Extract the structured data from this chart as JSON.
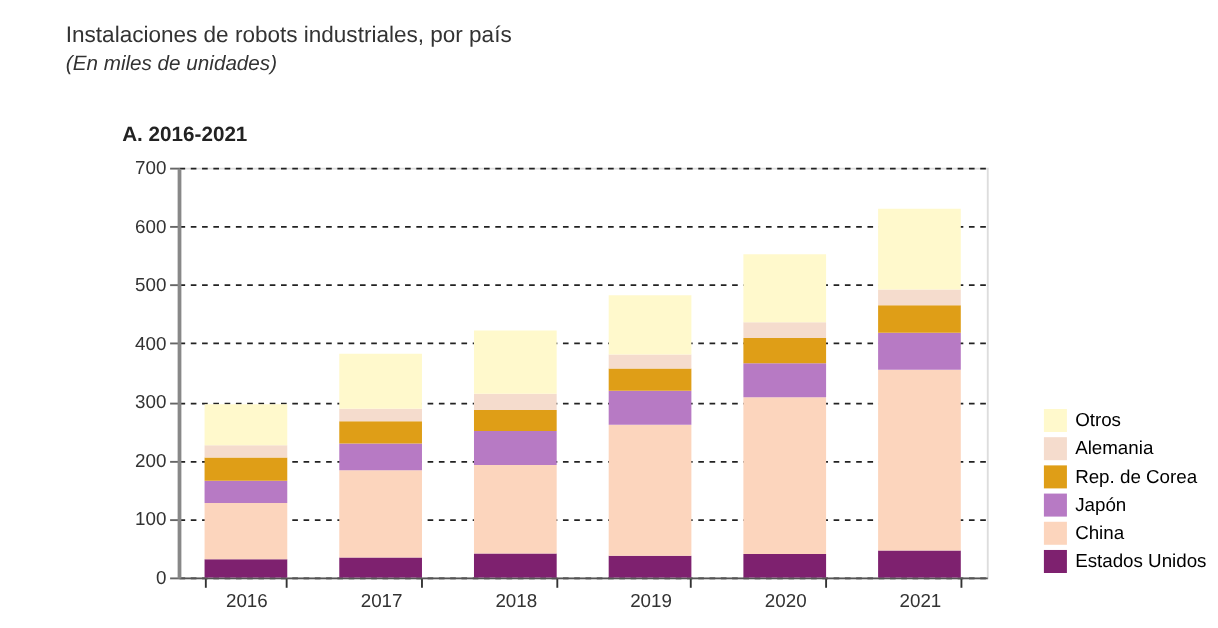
{
  "chart_data": {
    "type": "bar",
    "title": "Instalaciones de robots industriales, por país",
    "subtitle": "(En miles de unidades)",
    "annotations": [
      "A. 2016-2021"
    ],
    "categories": [
      "2016",
      "2017",
      "2018",
      "2019",
      "2020",
      "2021"
    ],
    "stacked": true,
    "series": [
      {
        "name": "Estados Unidos",
        "color": "#7e216f",
        "values": [
          31,
          34,
          41,
          37,
          40,
          46
        ]
      },
      {
        "name": "China",
        "color": "#fcd5bd",
        "values": [
          96,
          149,
          151,
          224,
          268,
          309
        ]
      },
      {
        "name": "Japón",
        "color": "#b77ac4",
        "values": [
          38,
          46,
          58,
          58,
          58,
          63
        ]
      },
      {
        "name": "Rep. de Corea",
        "color": "#df9e17",
        "values": [
          40,
          38,
          36,
          38,
          43,
          47
        ]
      },
      {
        "name": "Alemania",
        "color": "#f5dccd",
        "values": [
          21,
          21,
          28,
          24,
          27,
          27
        ]
      },
      {
        "name": "Otros",
        "color": "#fff9cc",
        "values": [
          70,
          94,
          108,
          101,
          116,
          138
        ]
      }
    ],
    "ylim": [
      0,
      700
    ],
    "yticks": [
      0,
      100,
      200,
      300,
      400,
      500,
      600,
      700
    ],
    "grid": "y",
    "legend": "bottom right"
  }
}
